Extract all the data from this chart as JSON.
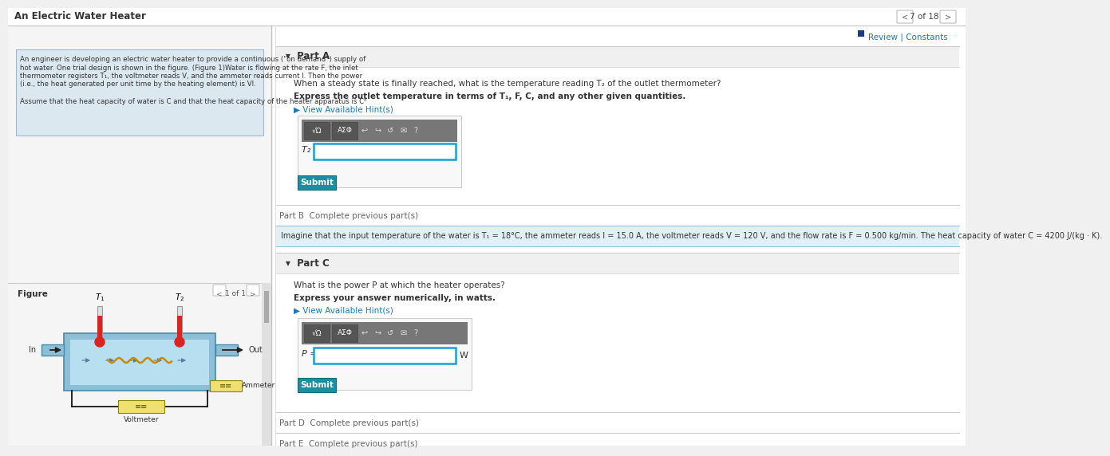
{
  "bg_color": "#f0f0f0",
  "white": "#ffffff",
  "title": "An Electric Water Heater",
  "title_color": "#333333",
  "nav_text": "7 of 18",
  "review_text": "Review | Constants",
  "left_panel_bg": "#dce8f0",
  "left_panel_border": "#a0b8cc",
  "figure_label": "Figure",
  "figure_nav": "1 of 1",
  "part_a_label": "▾  Part A",
  "part_a_q1": "When a steady state is finally reached, what is the temperature reading T₂ of the outlet thermometer?",
  "part_a_q2": "Express the outlet temperature in terms of T₁, F, C, and any other given quantities.",
  "hint_link": "▶ View Available Hint(s)",
  "t2_label": "T₂ =",
  "submit_text": "Submit",
  "part_b_label": "Part B  Complete previous part(s)",
  "part_b_info": "Imagine that the input temperature of the water is T₁ = 18°C, the ammeter reads I = 15.0 A, the voltmeter reads V = 120 V, and the flow rate is F = 0.500 kg/min. The heat capacity of water C = 4200 J/(kg · K).",
  "part_c_label": "▾  Part C",
  "part_c_q1": "What is the power P at which the heater operates?",
  "part_c_q2": "Express your answer numerically, in watts.",
  "p_label": "P =",
  "w_label": "W",
  "part_d_label": "Part D  Complete previous part(s)",
  "part_e_label": "Part E  Complete previous part(s)",
  "teal_color": "#1a8fa0",
  "teal_dark": "#0d6e7d",
  "hint_color": "#1a7ab8",
  "part_b_bg": "#e0f0f5",
  "part_b_border": "#90c8d8",
  "input_border": "#1a9fd6",
  "separator_color": "#cccccc",
  "left_divider": "#c0c0c0",
  "nav_arrow_color": "#888888",
  "toolbar_bg": "#777777",
  "toolbar_btn": "#555555",
  "review_box_color": "#1a3a8a"
}
